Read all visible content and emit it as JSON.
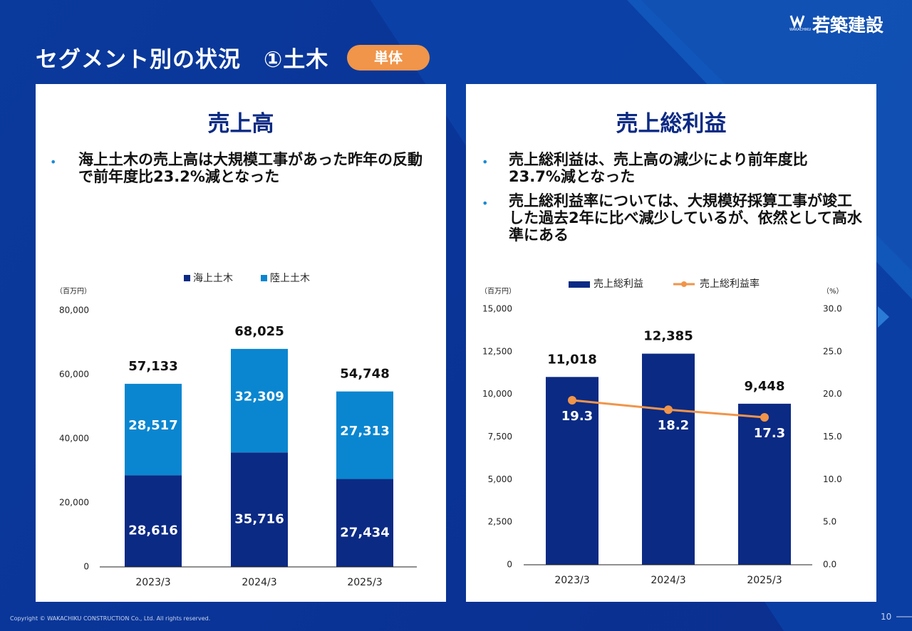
{
  "header": {
    "title": "セグメント別の状況　①土木",
    "badge": "単体",
    "logo": "若築建設",
    "logo_sub": "WAKACHIKU"
  },
  "panels": [
    {
      "title": "売上高",
      "bullets": [
        "海上土木の売上高は大規模工事があった昨年の反動で前年度比23.2%減となった"
      ]
    },
    {
      "title": "売上総利益",
      "bullets": [
        "売上総利益は、売上高の減少により前年度比23.7%減となった",
        "売上総利益率については、大規模好採算工事が竣工した過去2年に比べ減少しているが、依然として高水準にある"
      ]
    }
  ],
  "footer": {
    "copyright": "Copyright © WAKACHIKU CONSTRUCTION Co., Ltd. All rights reserved.",
    "page": "10"
  },
  "chart_data": [
    {
      "type": "stacked_bar",
      "y_unit": "（百万円）",
      "categories": [
        "2023/3",
        "2024/3",
        "2025/3"
      ],
      "series": [
        {
          "name": "海上土木",
          "color": "#0b2a84",
          "values": [
            28616,
            35716,
            27434
          ],
          "value_labels": [
            "28,616",
            "35,716",
            "27,434"
          ]
        },
        {
          "name": "陸上土木",
          "color": "#0a86d0",
          "values": [
            28517,
            32309,
            27313
          ],
          "value_labels": [
            "28,517",
            "32,309",
            "27,313"
          ]
        }
      ],
      "totals": [
        57133,
        68025,
        54748
      ],
      "total_labels": [
        "57,133",
        "68,025",
        "54,748"
      ],
      "ylim": [
        0,
        80000
      ],
      "yticks": [
        0,
        {
          "value": 20000,
          "label": "20,000"
        },
        {
          "value": 40000,
          "label": "40,000"
        },
        {
          "value": 60000,
          "label": "60,000"
        },
        {
          "value": 80000,
          "label": "80,000"
        }
      ]
    },
    {
      "type": "bar_line",
      "y_unit": "（百万円）",
      "y2_unit": "（%）",
      "categories": [
        "2023/3",
        "2024/3",
        "2025/3"
      ],
      "series": [
        {
          "name": "売上総利益",
          "color": "#0b2a84",
          "values": [
            11018,
            12385,
            9448
          ],
          "value_labels": [
            "11,018",
            "12,385",
            "9,448"
          ]
        },
        {
          "name": "売上総利益率",
          "color": "#f0954a",
          "axis": "y2",
          "values": [
            19.3,
            18.2,
            17.3
          ]
        }
      ],
      "ylim": [
        0,
        15000
      ],
      "yticks": [
        0,
        {
          "value": 2500,
          "label": "2,500"
        },
        {
          "value": 5000,
          "label": "5,000"
        },
        {
          "value": 7500,
          "label": "7,500"
        },
        {
          "value": 10000,
          "label": "10,000"
        },
        {
          "value": 12500,
          "label": "12,500"
        },
        {
          "value": 15000,
          "label": "15,000"
        }
      ],
      "y2lim": [
        0,
        30
      ],
      "y2ticks": [
        {
          "value": 0,
          "label": "0.0"
        },
        {
          "value": 5,
          "label": "5.0"
        },
        {
          "value": 10,
          "label": "10.0"
        },
        {
          "value": 15,
          "label": "15.0"
        },
        {
          "value": 20,
          "label": "20.0"
        },
        {
          "value": 25,
          "label": "25.0"
        },
        {
          "value": 30,
          "label": "30.0"
        }
      ]
    }
  ]
}
